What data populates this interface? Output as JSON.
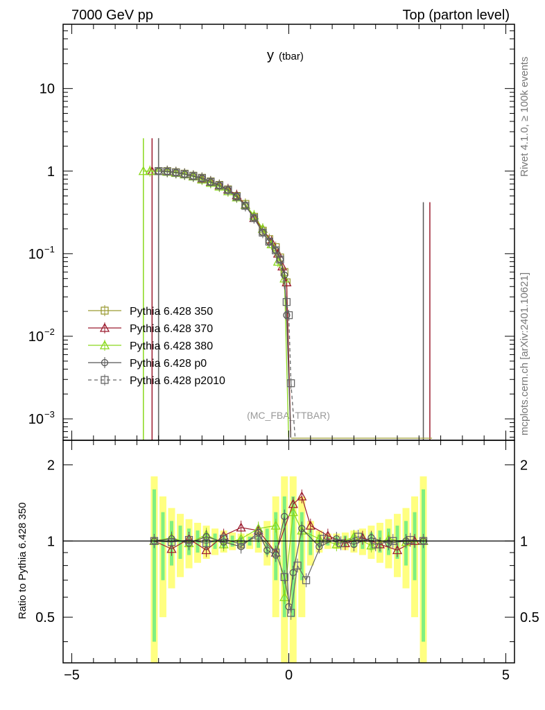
{
  "header": {
    "left": "7000 GeV pp",
    "right": "Top (parton level)"
  },
  "side_labels": {
    "rivet": "Rivet 4.1.0, ≥ 100k events",
    "mcplots": "mcplots.cern.ch [arXiv:2401.10621]"
  },
  "colors": {
    "p350": "#9a9a32",
    "p370": "#9b1b2e",
    "p380": "#8ad81c",
    "p0": "#555555",
    "p2010": "#666666",
    "band_outer": "#ffff80",
    "band_inner": "#80f080"
  },
  "chart_data": [
    {
      "type": "line",
      "title": "y",
      "title_sub": "(tbar)",
      "analysis_label": "(MC_FBA_TTBAR)",
      "xlim": [
        -5.2,
        5.2
      ],
      "ylim": [
        0.00055,
        60
      ],
      "yscale": "log",
      "yticks": [
        {
          "v": 10,
          "base": "10",
          "exp": ""
        },
        {
          "v": 1,
          "base": "1",
          "exp": ""
        },
        {
          "v": 0.1,
          "base": "10",
          "exp": "−1"
        },
        {
          "v": 0.01,
          "base": "10",
          "exp": "−2"
        },
        {
          "v": 0.001,
          "base": "10",
          "exp": "−3"
        }
      ],
      "legend_position": "left-middle",
      "series": [
        {
          "name": "Pythia 6.428 350",
          "color_key": "p350",
          "marker": "square",
          "dash": false,
          "x": [
            -3.0,
            -2.8,
            -2.6,
            -2.4,
            -2.2,
            -2.0,
            -1.8,
            -1.6,
            -1.4,
            -1.2,
            -1.0,
            -0.8,
            -0.6,
            -0.45,
            -0.3,
            -0.2,
            -0.1,
            -0.05
          ],
          "y": [
            1.0,
            1.0,
            0.97,
            0.93,
            0.88,
            0.83,
            0.75,
            0.68,
            0.6,
            0.5,
            0.4,
            0.28,
            0.19,
            0.15,
            0.12,
            0.09,
            0.06,
            0.045
          ]
        },
        {
          "name": "Pythia 6.428 370",
          "color_key": "p370",
          "marker": "triangle",
          "dash": false,
          "x": [
            -3.15,
            -3.0,
            -2.8,
            -2.6,
            -2.4,
            -2.2,
            -2.0,
            -1.8,
            -1.6,
            -1.4,
            -1.2,
            -1.0,
            -0.8,
            -0.6,
            -0.4,
            -0.25,
            -0.15,
            -0.05
          ],
          "y": [
            1.0,
            1.0,
            0.99,
            0.96,
            0.92,
            0.87,
            0.81,
            0.74,
            0.67,
            0.6,
            0.51,
            0.39,
            0.27,
            0.2,
            0.14,
            0.1,
            0.07,
            0.045
          ]
        },
        {
          "name": "Pythia 6.428 380",
          "color_key": "p380",
          "marker": "triangle",
          "dash": false,
          "x": [
            -3.35,
            -3.2,
            -3.0,
            -2.8,
            -2.6,
            -2.4,
            -2.2,
            -2.0,
            -1.8,
            -1.6,
            -1.4,
            -1.2,
            -1.0,
            -0.8,
            -0.6,
            -0.4,
            -0.25,
            -0.1
          ],
          "y": [
            1.0,
            1.0,
            1.0,
            0.98,
            0.95,
            0.91,
            0.86,
            0.79,
            0.72,
            0.65,
            0.57,
            0.48,
            0.39,
            0.29,
            0.2,
            0.13,
            0.08,
            0.05
          ]
        },
        {
          "name": "Pythia 6.428 p0",
          "color_key": "p0",
          "marker": "circle",
          "dash": false,
          "x": [
            -3.0,
            -2.8,
            -2.6,
            -2.4,
            -2.2,
            -2.0,
            -1.8,
            -1.6,
            -1.4,
            -1.2,
            -1.0,
            -0.8,
            -0.6,
            -0.45,
            -0.3,
            -0.2,
            -0.1,
            -0.05
          ],
          "y": [
            1.0,
            0.99,
            0.96,
            0.92,
            0.87,
            0.82,
            0.74,
            0.67,
            0.59,
            0.49,
            0.38,
            0.27,
            0.18,
            0.14,
            0.11,
            0.085,
            0.055,
            0.018
          ]
        },
        {
          "name": "Pythia 6.428 p2010",
          "color_key": "p2010",
          "marker": "square",
          "dash": true,
          "x": [
            -3.0,
            -2.8,
            -2.6,
            -2.4,
            -2.2,
            -2.0,
            -1.8,
            -1.6,
            -1.4,
            -1.2,
            -1.0,
            -0.8,
            -0.6,
            -0.45,
            -0.3,
            -0.2,
            -0.05,
            0.0,
            0.05
          ],
          "y": [
            1.0,
            0.99,
            0.96,
            0.92,
            0.87,
            0.82,
            0.74,
            0.67,
            0.59,
            0.49,
            0.38,
            0.27,
            0.18,
            0.14,
            0.11,
            0.085,
            0.026,
            0.018,
            0.0027
          ]
        }
      ]
    },
    {
      "type": "line",
      "ylabel": "Ratio to Pythia 6.428 350",
      "xlim": [
        -5.2,
        5.2
      ],
      "ylim": [
        0.33,
        2.5
      ],
      "yscale": "log",
      "yticks": [
        {
          "v": 2,
          "label": "2"
        },
        {
          "v": 1,
          "label": "1"
        },
        {
          "v": 0.5,
          "label": "0.5"
        }
      ],
      "xticks": [
        {
          "v": -5,
          "label": "−5"
        },
        {
          "v": 0,
          "label": "0"
        },
        {
          "v": 5,
          "label": "5"
        }
      ],
      "band_x": [
        -3.1,
        -2.9,
        -2.7,
        -2.5,
        -2.3,
        -2.1,
        -1.9,
        -1.7,
        -1.5,
        -1.3,
        -1.1,
        -0.9,
        -0.7,
        -0.5,
        -0.3,
        -0.1,
        0.1,
        0.3,
        0.5,
        0.7,
        0.9,
        1.1,
        1.3,
        1.5,
        1.7,
        1.9,
        2.1,
        2.3,
        2.5,
        2.7,
        2.9,
        3.1
      ],
      "band_outer_halfwidth": [
        0.8,
        0.5,
        0.35,
        0.28,
        0.22,
        0.18,
        0.15,
        0.12,
        0.1,
        0.08,
        0.07,
        0.07,
        0.1,
        0.2,
        0.5,
        0.8,
        0.8,
        0.5,
        0.2,
        0.1,
        0.07,
        0.07,
        0.08,
        0.1,
        0.12,
        0.15,
        0.18,
        0.22,
        0.28,
        0.35,
        0.5,
        0.8
      ],
      "band_inner_halfwidth": [
        0.6,
        0.3,
        0.2,
        0.15,
        0.12,
        0.1,
        0.08,
        0.07,
        0.06,
        0.05,
        0.04,
        0.04,
        0.06,
        0.12,
        0.3,
        0.5,
        0.5,
        0.3,
        0.12,
        0.06,
        0.04,
        0.04,
        0.05,
        0.06,
        0.07,
        0.08,
        0.1,
        0.12,
        0.15,
        0.2,
        0.3,
        0.6
      ],
      "series": [
        {
          "name": "Pythia 6.428 370",
          "color_key": "p370",
          "marker": "triangle",
          "x": [
            -3.1,
            -2.7,
            -2.3,
            -1.9,
            -1.5,
            -1.1,
            -0.7,
            -0.3,
            0.1,
            0.3,
            0.5,
            0.9,
            1.3,
            1.7,
            2.1,
            2.5,
            2.9,
            3.1
          ],
          "y": [
            1.0,
            0.93,
            1.02,
            0.92,
            1.05,
            1.13,
            1.1,
            0.9,
            1.4,
            1.5,
            1.15,
            1.05,
            0.98,
            1.03,
            0.97,
            0.92,
            1.0,
            1.0
          ]
        },
        {
          "name": "Pythia 6.428 380",
          "color_key": "p380",
          "marker": "triangle",
          "x": [
            -3.1,
            -2.7,
            -2.3,
            -1.9,
            -1.5,
            -1.1,
            -0.7,
            -0.3,
            -0.1,
            0.1,
            0.3,
            0.7,
            1.1,
            1.5,
            1.9,
            2.3,
            2.7,
            3.1
          ],
          "y": [
            1.0,
            1.03,
            0.98,
            1.06,
            0.97,
            1.02,
            1.12,
            1.15,
            0.6,
            1.3,
            1.1,
            1.02,
            0.97,
            1.04,
            0.96,
            1.02,
            0.99,
            1.0
          ]
        },
        {
          "name": "Pythia 6.428 p0",
          "color_key": "p0",
          "marker": "circle",
          "x": [
            -3.1,
            -2.7,
            -2.3,
            -1.9,
            -1.5,
            -1.1,
            -0.7,
            -0.5,
            -0.3,
            -0.1,
            0.0,
            0.1,
            0.3,
            0.7,
            1.1,
            1.5,
            1.9,
            2.3,
            2.7,
            3.1
          ],
          "y": [
            1.0,
            1.02,
            0.98,
            1.04,
            0.99,
            0.95,
            1.08,
            0.92,
            0.88,
            1.25,
            0.55,
            0.75,
            1.12,
            0.95,
            1.02,
            0.97,
            1.03,
            0.98,
            1.0,
            1.0
          ]
        },
        {
          "name": "Pythia 6.428 p2010",
          "color_key": "p2010",
          "marker": "square",
          "x": [
            -3.1,
            -2.7,
            -2.3,
            -1.9,
            -1.5,
            -1.1,
            -0.7,
            -0.3,
            -0.1,
            0.05,
            0.2,
            0.4,
            0.8,
            1.2,
            1.6,
            2.0,
            2.4,
            2.8,
            3.1
          ],
          "y": [
            1.0,
            0.99,
            1.01,
            0.98,
            1.02,
            0.97,
            1.05,
            0.9,
            0.72,
            0.52,
            0.8,
            0.7,
            1.02,
            0.98,
            1.04,
            0.97,
            1.0,
            1.01,
            1.0
          ]
        }
      ]
    }
  ]
}
